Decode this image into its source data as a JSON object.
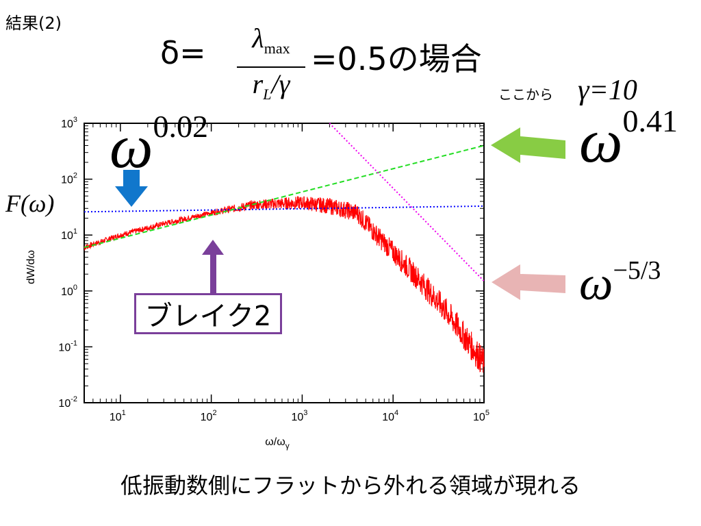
{
  "slide": {
    "label": "結果(2)",
    "formula": {
      "lhs": "δ=",
      "numerator": "λ",
      "numerator_sub": "max",
      "denominator_r": "r",
      "denominator_sub": "L",
      "denominator_rest": "/γ",
      "rhs": "=0.5の場合"
    },
    "gamma_note": {
      "prefix": "ここから",
      "expr": "γ=10"
    },
    "footer": "低振動数側にフラットから外れる領域が現れる",
    "labels": {
      "omega": "ω",
      "exp_flat": "0.02",
      "exp_rise": "0.41",
      "exp_fall": "−5/3",
      "F_label": "F(ω)",
      "break_box": "ブレイク2"
    },
    "colors": {
      "spectrum": "#ff0000",
      "fit_flat": "#0000ff",
      "fit_rise": "#22dd22",
      "fit_fall": "#ee00ee",
      "arrow_blue": "#1177cc",
      "arrow_green": "#88cc44",
      "arrow_pink": "#e8b4b4",
      "arrow_purple": "#7a3f9a"
    },
    "icons": [
      "blue-down-arrow-icon",
      "green-left-arrow-icon",
      "pink-left-arrow-icon",
      "purple-up-arrow-icon"
    ]
  },
  "chart_data": {
    "type": "line",
    "title": "",
    "xlabel": "ω/ω",
    "xlabel_sub": "γ",
    "ylabel": "dW/dω",
    "x_scale": "log",
    "y_scale": "log",
    "xlim": [
      4,
      100000
    ],
    "ylim": [
      0.01,
      1000
    ],
    "x_ticks": [
      {
        "value": 10,
        "base": "10",
        "exp": "1"
      },
      {
        "value": 100,
        "base": "10",
        "exp": "2"
      },
      {
        "value": 1000,
        "base": "10",
        "exp": "3"
      },
      {
        "value": 10000,
        "base": "10",
        "exp": "4"
      },
      {
        "value": 100000,
        "base": "10",
        "exp": "5"
      }
    ],
    "y_ticks": [
      {
        "value": 0.01,
        "base": "10",
        "exp": "-2"
      },
      {
        "value": 0.1,
        "base": "10",
        "exp": "-1"
      },
      {
        "value": 1,
        "base": "10",
        "exp": "0"
      },
      {
        "value": 10,
        "base": "10",
        "exp": "1"
      },
      {
        "value": 100,
        "base": "10",
        "exp": "2"
      },
      {
        "value": 1000,
        "base": "10",
        "exp": "3"
      }
    ],
    "grid": false,
    "series": [
      {
        "style": "solid-noisy",
        "x": [
          4,
          10,
          30,
          100,
          300,
          1000,
          2000,
          4000,
          7000,
          10000,
          20000,
          40000,
          100000
        ],
        "y": [
          6,
          10,
          16,
          25,
          35,
          38,
          33,
          25,
          9,
          5,
          1.5,
          0.4,
          0.05
        ]
      },
      {
        "style": "dotted",
        "x": [
          4,
          100000
        ],
        "y": [
          26,
          33
        ]
      },
      {
        "style": "dashed",
        "x": [
          4,
          100000
        ],
        "y": [
          6,
          400
        ]
      },
      {
        "style": "dotted",
        "x": [
          2000,
          100000
        ],
        "y": [
          1000,
          1.5
        ]
      }
    ]
  }
}
